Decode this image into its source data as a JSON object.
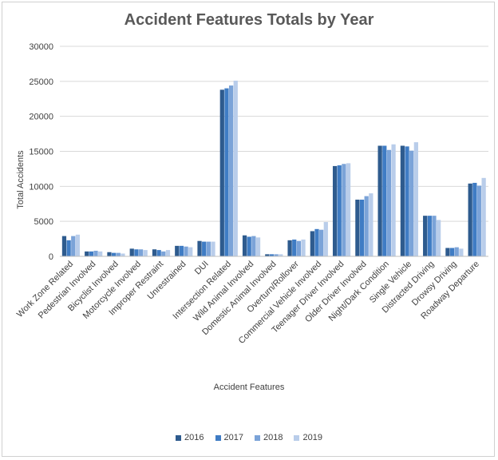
{
  "colors": {
    "series": [
      "#2e5b8e",
      "#3f7cc4",
      "#7ba3d8",
      "#b9cdea"
    ],
    "grid": "#d9d9d9",
    "axis": "#bfbfbf"
  },
  "chart_data": {
    "type": "bar",
    "title": "Accident Features Totals by Year",
    "xlabel": "Accident Features",
    "ylabel": "Total Accidents",
    "ylim": [
      0,
      30000
    ],
    "yticks": [
      "0",
      "5000",
      "10000",
      "15000",
      "20000",
      "25000",
      "30000"
    ],
    "grid": true,
    "legend_position": "bottom",
    "categories": [
      "Work Zone Related",
      "Pedestrian Involved",
      "Bicyclist Involved",
      "Motorcycle Involved",
      "Improper Restraint",
      "Unrestrained",
      "DUI",
      "Intersection Related",
      "Wild Animal Involved",
      "Domestic Animal Involved",
      "Overturn/Rollover",
      "Commercial Vehicle Involved",
      "Teenager Driver Involved",
      "Older Driver Involved",
      "Night/Dark Condition",
      "Single Vehicle",
      "Distracted Driving",
      "Drowsy Driving",
      "Roadway Departure"
    ],
    "series": [
      {
        "name": "2016",
        "values": [
          2900,
          700,
          600,
          1100,
          1000,
          1500,
          2200,
          23800,
          3000,
          300,
          2300,
          3600,
          12900,
          8100,
          15800,
          15800,
          5800,
          1200,
          10400
        ]
      },
      {
        "name": "2017",
        "values": [
          2300,
          700,
          500,
          1000,
          900,
          1500,
          2100,
          24000,
          2800,
          300,
          2400,
          3900,
          13000,
          8100,
          15800,
          15700,
          5800,
          1200,
          10500
        ]
      },
      {
        "name": "2018",
        "values": [
          2900,
          800,
          500,
          1000,
          700,
          1400,
          2100,
          24400,
          2900,
          300,
          2200,
          3800,
          13200,
          8600,
          15200,
          15100,
          5800,
          1300,
          10100
        ]
      },
      {
        "name": "2019",
        "values": [
          3100,
          700,
          400,
          900,
          900,
          1300,
          2100,
          25100,
          2700,
          300,
          2400,
          4900,
          13300,
          9000,
          16000,
          16300,
          5200,
          1100,
          11200
        ]
      }
    ]
  }
}
